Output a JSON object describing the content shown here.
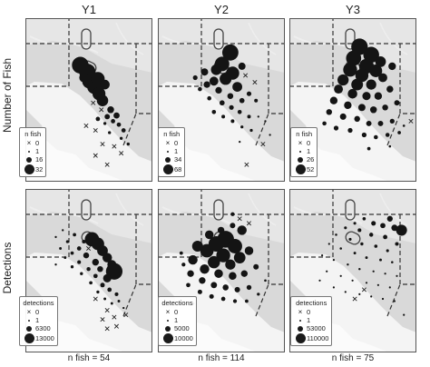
{
  "chart_data": {
    "type": "scatter",
    "layout": "small-multiples map grid",
    "columns": [
      "Y1",
      "Y2",
      "Y3"
    ],
    "rows": [
      "Number of Fish",
      "Detections"
    ],
    "footers": [
      "n fish = 54",
      "n fish = 114",
      "n fish = 75"
    ],
    "legends": {
      "Number of Fish": {
        "Y1": {
          "title": "n fish",
          "entries": [
            "0",
            "1",
            "16",
            "32"
          ]
        },
        "Y2": {
          "title": "n fish",
          "entries": [
            "0",
            "1",
            "34",
            "68"
          ]
        },
        "Y3": {
          "title": "n fish",
          "entries": [
            "0",
            "1",
            "26",
            "52"
          ]
        }
      },
      "Detections": {
        "Y1": {
          "title": "detections",
          "entries": [
            "0",
            "1",
            "6300",
            "13000"
          ]
        },
        "Y2": {
          "title": "detections",
          "entries": [
            "0",
            "1",
            "5000",
            "10000"
          ]
        },
        "Y3": {
          "title": "detections",
          "entries": [
            "0",
            "1",
            "53000",
            "110000"
          ]
        }
      }
    },
    "panels": [
      {
        "row": "Number of Fish",
        "col": "Y1",
        "max": 32,
        "dots": [
          [
            0.47,
            0.41,
            30
          ],
          [
            0.53,
            0.47,
            29
          ],
          [
            0.55,
            0.55,
            24
          ],
          [
            0.59,
            0.6,
            22
          ],
          [
            0.63,
            0.66,
            18
          ],
          [
            0.66,
            0.72,
            14
          ],
          [
            0.62,
            0.53,
            20
          ],
          [
            0.68,
            0.58,
            10
          ],
          [
            0.5,
            0.52,
            9
          ],
          [
            0.73,
            0.8,
            5
          ],
          [
            0.78,
            0.85,
            4
          ],
          [
            0.7,
            0.86,
            3
          ],
          [
            0.8,
            0.93,
            2
          ],
          [
            0.84,
            0.98,
            2
          ],
          [
            0.62,
            0.88,
            2
          ],
          [
            0.75,
            0.9,
            2
          ],
          [
            0.82,
            1.05,
            1
          ],
          [
            0.88,
            1.1,
            1
          ],
          [
            0.68,
            0.92,
            1
          ],
          [
            0.72,
            1.0,
            1
          ]
        ],
        "zeros": [
          [
            0.58,
            0.74
          ],
          [
            0.65,
            0.8
          ],
          [
            0.52,
            0.94
          ],
          [
            0.6,
            0.98
          ],
          [
            0.66,
            1.1
          ],
          [
            0.76,
            1.12
          ],
          [
            0.82,
            1.18
          ],
          [
            0.6,
            1.2
          ],
          [
            0.7,
            1.28
          ]
        ]
      },
      {
        "row": "Number of Fish",
        "col": "Y2",
        "max": 68,
        "dots": [
          [
            0.62,
            0.3,
            60
          ],
          [
            0.55,
            0.4,
            48
          ],
          [
            0.64,
            0.48,
            40
          ],
          [
            0.58,
            0.53,
            33
          ],
          [
            0.68,
            0.6,
            22
          ],
          [
            0.5,
            0.45,
            26
          ],
          [
            0.72,
            0.42,
            12
          ],
          [
            0.48,
            0.55,
            18
          ],
          [
            0.4,
            0.47,
            12
          ],
          [
            0.42,
            0.58,
            10
          ],
          [
            0.52,
            0.63,
            10
          ],
          [
            0.62,
            0.68,
            8
          ],
          [
            0.72,
            0.72,
            6
          ],
          [
            0.78,
            0.66,
            5
          ],
          [
            0.84,
            0.72,
            3
          ],
          [
            0.55,
            0.74,
            6
          ],
          [
            0.63,
            0.78,
            5
          ],
          [
            0.7,
            0.82,
            4
          ],
          [
            0.78,
            0.86,
            3
          ],
          [
            0.48,
            0.82,
            4
          ],
          [
            0.56,
            0.86,
            3
          ],
          [
            0.64,
            0.9,
            3
          ],
          [
            0.72,
            0.95,
            2
          ],
          [
            0.8,
            0.98,
            2
          ],
          [
            0.32,
            0.52,
            5
          ],
          [
            0.36,
            0.62,
            4
          ],
          [
            0.44,
            0.7,
            4
          ],
          [
            0.86,
            0.86,
            1
          ],
          [
            0.92,
            0.9,
            1
          ],
          [
            0.7,
            1.08,
            1
          ],
          [
            0.96,
            1.02,
            1
          ]
        ],
        "zeros": [
          [
            0.75,
            0.5
          ],
          [
            0.83,
            0.56
          ],
          [
            0.9,
            1.1
          ],
          [
            0.76,
            1.28
          ]
        ]
      },
      {
        "row": "Number of Fish",
        "col": "Y3",
        "max": 52,
        "dots": [
          [
            0.6,
            0.25,
            48
          ],
          [
            0.7,
            0.32,
            44
          ],
          [
            0.55,
            0.35,
            40
          ],
          [
            0.66,
            0.42,
            38
          ],
          [
            0.52,
            0.45,
            34
          ],
          [
            0.62,
            0.5,
            30
          ],
          [
            0.74,
            0.46,
            28
          ],
          [
            0.46,
            0.54,
            22
          ],
          [
            0.58,
            0.58,
            24
          ],
          [
            0.7,
            0.58,
            18
          ],
          [
            0.8,
            0.52,
            14
          ],
          [
            0.42,
            0.62,
            14
          ],
          [
            0.54,
            0.66,
            16
          ],
          [
            0.66,
            0.68,
            12
          ],
          [
            0.76,
            0.68,
            10
          ],
          [
            0.86,
            0.62,
            8
          ],
          [
            0.38,
            0.72,
            10
          ],
          [
            0.5,
            0.76,
            10
          ],
          [
            0.62,
            0.78,
            9
          ],
          [
            0.72,
            0.8,
            8
          ],
          [
            0.82,
            0.78,
            6
          ],
          [
            0.92,
            0.74,
            5
          ],
          [
            0.34,
            0.82,
            6
          ],
          [
            0.46,
            0.86,
            7
          ],
          [
            0.58,
            0.88,
            6
          ],
          [
            0.68,
            0.92,
            5
          ],
          [
            0.78,
            0.92,
            5
          ],
          [
            0.88,
            0.9,
            4
          ],
          [
            0.4,
            0.96,
            4
          ],
          [
            0.52,
            0.98,
            4
          ],
          [
            0.64,
            1.02,
            4
          ],
          [
            0.74,
            1.04,
            3
          ],
          [
            0.84,
            1.02,
            3
          ],
          [
            0.94,
            1.0,
            2
          ],
          [
            0.3,
            0.92,
            3
          ],
          [
            0.78,
            0.38,
            20
          ],
          [
            0.88,
            0.42,
            10
          ],
          [
            0.98,
            0.94,
            1
          ],
          [
            0.86,
            1.12,
            1
          ],
          [
            0.68,
            1.14,
            2
          ]
        ],
        "zeros": [
          [
            1.04,
            0.9
          ]
        ]
      },
      {
        "row": "Detections",
        "col": "Y1",
        "max": 13000,
        "dots": [
          [
            0.57,
            0.44,
            9000
          ],
          [
            0.62,
            0.48,
            7000
          ],
          [
            0.66,
            0.54,
            5000
          ],
          [
            0.7,
            0.6,
            4000
          ],
          [
            0.74,
            0.66,
            3500
          ],
          [
            0.76,
            0.72,
            12000
          ],
          [
            0.7,
            0.78,
            3000
          ],
          [
            0.52,
            0.58,
            1500
          ],
          [
            0.6,
            0.64,
            2000
          ],
          [
            0.64,
            0.7,
            1500
          ],
          [
            0.46,
            0.52,
            800
          ],
          [
            0.42,
            0.4,
            500
          ],
          [
            0.5,
            0.46,
            600
          ],
          [
            0.36,
            0.46,
            400
          ],
          [
            0.4,
            0.56,
            500
          ],
          [
            0.46,
            0.64,
            600
          ],
          [
            0.54,
            0.7,
            700
          ],
          [
            0.6,
            0.76,
            800
          ],
          [
            0.66,
            0.84,
            900
          ],
          [
            0.72,
            0.88,
            800
          ],
          [
            0.78,
            0.92,
            600
          ],
          [
            0.3,
            0.52,
            300
          ],
          [
            0.34,
            0.6,
            300
          ],
          [
            0.4,
            0.68,
            400
          ],
          [
            0.48,
            0.74,
            400
          ],
          [
            0.56,
            0.82,
            500
          ],
          [
            0.62,
            0.9,
            400
          ],
          [
            0.68,
            0.96,
            300
          ],
          [
            0.74,
            1.0,
            300
          ],
          [
            0.8,
            0.98,
            300
          ],
          [
            0.26,
            0.42,
            200
          ],
          [
            0.32,
            0.36,
            200
          ],
          [
            0.26,
            0.66,
            200
          ],
          [
            0.84,
            1.04,
            200
          ]
        ],
        "zeros": [
          [
            0.54,
            0.52
          ],
          [
            0.6,
            0.96
          ],
          [
            0.7,
            1.06
          ],
          [
            0.76,
            1.12
          ],
          [
            0.66,
            1.14
          ],
          [
            0.78,
            1.2
          ],
          [
            0.7,
            1.22
          ],
          [
            0.86,
            1.1
          ]
        ]
      },
      {
        "row": "Detections",
        "col": "Y2",
        "max": 10000,
        "dots": [
          [
            0.58,
            0.44,
            9500
          ],
          [
            0.5,
            0.48,
            8000
          ],
          [
            0.66,
            0.5,
            7000
          ],
          [
            0.42,
            0.54,
            6000
          ],
          [
            0.56,
            0.58,
            6500
          ],
          [
            0.7,
            0.6,
            4500
          ],
          [
            0.34,
            0.5,
            4000
          ],
          [
            0.48,
            0.64,
            5000
          ],
          [
            0.62,
            0.66,
            3500
          ],
          [
            0.72,
            0.36,
            3000
          ],
          [
            0.78,
            0.54,
            2500
          ],
          [
            0.3,
            0.62,
            3000
          ],
          [
            0.4,
            0.7,
            3000
          ],
          [
            0.52,
            0.74,
            2500
          ],
          [
            0.64,
            0.76,
            2000
          ],
          [
            0.74,
            0.74,
            1500
          ],
          [
            0.84,
            0.68,
            1000
          ],
          [
            0.28,
            0.74,
            1500
          ],
          [
            0.38,
            0.8,
            1500
          ],
          [
            0.48,
            0.84,
            1300
          ],
          [
            0.58,
            0.86,
            1200
          ],
          [
            0.68,
            0.88,
            1000
          ],
          [
            0.78,
            0.86,
            800
          ],
          [
            0.26,
            0.84,
            600
          ],
          [
            0.36,
            0.9,
            700
          ],
          [
            0.46,
            0.94,
            700
          ],
          [
            0.56,
            0.96,
            600
          ],
          [
            0.66,
            0.98,
            500
          ],
          [
            0.76,
            0.98,
            400
          ],
          [
            0.86,
            0.92,
            300
          ],
          [
            0.44,
            0.4,
            2500
          ],
          [
            0.54,
            0.36,
            1500
          ],
          [
            0.64,
            0.32,
            1000
          ],
          [
            0.22,
            0.66,
            500
          ],
          [
            0.2,
            0.56,
            400
          ],
          [
            0.3,
            1.0,
            300
          ],
          [
            0.92,
            0.8,
            200
          ],
          [
            0.64,
            0.22,
            500
          ]
        ],
        "zeros": [
          [
            0.7,
            0.26
          ],
          [
            0.78,
            0.3
          ]
        ]
      },
      {
        "row": "Detections",
        "col": "Y3",
        "max": 110000,
        "dots": [
          [
            0.86,
            0.26,
            12000
          ],
          [
            0.96,
            0.36,
            45000
          ],
          [
            0.9,
            0.34,
            15000
          ],
          [
            0.8,
            0.32,
            10000
          ],
          [
            0.72,
            0.3,
            8000
          ],
          [
            0.64,
            0.26,
            4000
          ],
          [
            0.56,
            0.3,
            3000
          ],
          [
            0.48,
            0.34,
            3000
          ],
          [
            0.6,
            0.36,
            5000
          ],
          [
            0.7,
            0.4,
            6000
          ],
          [
            0.82,
            0.42,
            7000
          ],
          [
            0.92,
            0.48,
            5000
          ],
          [
            0.4,
            0.4,
            2000
          ],
          [
            0.52,
            0.44,
            3000
          ],
          [
            0.62,
            0.48,
            3500
          ],
          [
            0.74,
            0.5,
            4000
          ],
          [
            0.84,
            0.54,
            3000
          ],
          [
            0.34,
            0.48,
            1500
          ],
          [
            0.44,
            0.52,
            2000
          ],
          [
            0.56,
            0.56,
            2500
          ],
          [
            0.66,
            0.6,
            2500
          ],
          [
            0.78,
            0.62,
            2500
          ],
          [
            0.88,
            0.64,
            2000
          ],
          [
            0.28,
            0.58,
            1000
          ],
          [
            0.38,
            0.62,
            1500
          ],
          [
            0.5,
            0.66,
            1800
          ],
          [
            0.6,
            0.7,
            1800
          ],
          [
            0.72,
            0.72,
            1500
          ],
          [
            0.82,
            0.74,
            1200
          ],
          [
            0.92,
            0.76,
            1000
          ],
          [
            0.32,
            0.72,
            1000
          ],
          [
            0.44,
            0.76,
            1200
          ],
          [
            0.54,
            0.8,
            1200
          ],
          [
            0.66,
            0.82,
            1000
          ],
          [
            0.76,
            0.84,
            900
          ],
          [
            0.86,
            0.86,
            800
          ],
          [
            0.38,
            0.86,
            600
          ],
          [
            0.48,
            0.9,
            700
          ],
          [
            0.6,
            0.92,
            600
          ],
          [
            0.7,
            0.94,
            500
          ],
          [
            0.8,
            0.96,
            500
          ],
          [
            0.9,
            0.98,
            400
          ],
          [
            0.26,
            0.8,
            400
          ],
          [
            0.98,
            1.1,
            300
          ]
        ],
        "zeros": [
          [
            0.64,
            0.88
          ],
          [
            0.56,
            0.96
          ]
        ]
      }
    ]
  }
}
